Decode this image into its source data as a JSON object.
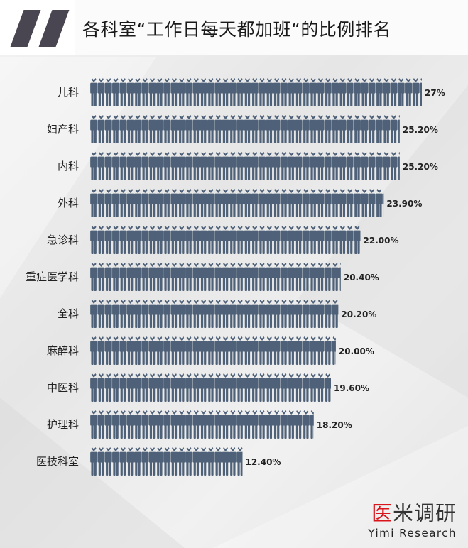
{
  "header": {
    "title": "各科室“工作日每天都加班“的比例排名"
  },
  "logo": {
    "cn_part1": "医",
    "cn_part2": "米调研",
    "en": "Yimi Research",
    "brand_red": "#d9141b"
  },
  "colors": {
    "figure": "#4e6178",
    "header_mark": "#4a4651"
  },
  "chart_data": {
    "type": "bar",
    "orientation": "horizontal",
    "style": "pictograph-people",
    "title": "各科室“工作日每天都加班“的比例排名",
    "xlabel": "",
    "ylabel": "",
    "xlim": [
      0,
      27
    ],
    "categories": [
      "儿科",
      "妇产科",
      "内科",
      "外科",
      "急诊科",
      "重症医学科",
      "全科",
      "麻醉科",
      "中医科",
      "护理科",
      "医技科室"
    ],
    "values": [
      27,
      25.2,
      25.2,
      23.9,
      22.0,
      20.4,
      20.2,
      20.0,
      19.6,
      18.2,
      12.4
    ],
    "value_labels": [
      "27%",
      "25.20%",
      "25.20%",
      "23.90%",
      "22.00%",
      "20.40%",
      "20.20%",
      "20.00%",
      "19.60%",
      "18.20%",
      "12.40%"
    ]
  }
}
